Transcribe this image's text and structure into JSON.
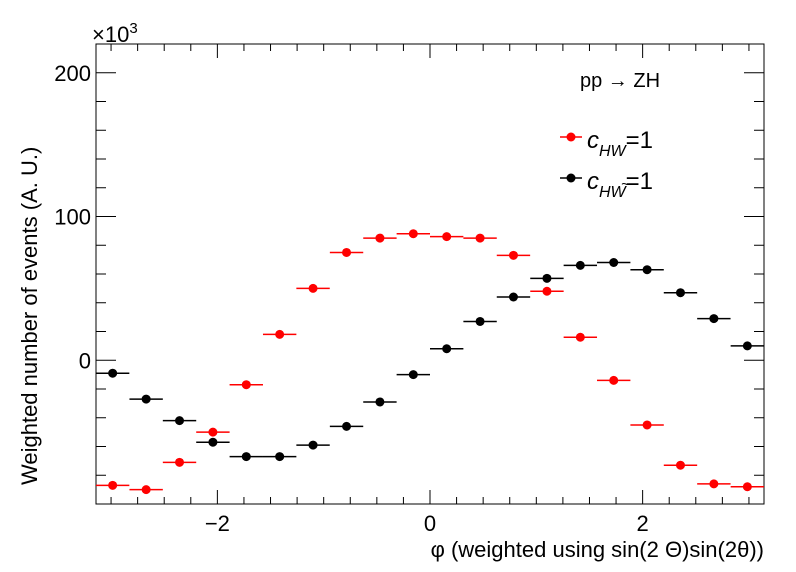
{
  "chart_data": {
    "type": "scatter",
    "xlabel": "φ (weighted using sin(2 Θ)sin(2θ))",
    "ylabel": "Weighted number of events (A. U.)",
    "multiplier": "×10",
    "multiplier_exp": "3",
    "annotation": "pp → ZH",
    "xlim": [
      -3.1416,
      3.1416
    ],
    "ylim": [
      -100,
      220
    ],
    "x_ticks": [
      -2,
      0,
      2
    ],
    "x_tick_labels": [
      "−2",
      "0",
      "2"
    ],
    "y_ticks": [
      0,
      100,
      200
    ],
    "y_tick_labels": [
      "0",
      "100",
      "200"
    ],
    "x_bin_halfwidth": 0.157,
    "x": [
      -2.985,
      -2.67,
      -2.356,
      -2.042,
      -1.728,
      -1.414,
      -1.1,
      -0.785,
      -0.471,
      -0.157,
      0.157,
      0.471,
      0.785,
      1.1,
      1.414,
      1.728,
      2.042,
      2.356,
      2.67,
      2.985
    ],
    "series": [
      {
        "legend_main": "c",
        "legend_sub": "HW",
        "legend_tilde": "",
        "legend_suffix": "=1",
        "color": "#ff0000",
        "values": [
          -87,
          -90,
          -71,
          -50,
          -17,
          18,
          50,
          75,
          85,
          88,
          86,
          85,
          73,
          48,
          16,
          -14,
          -45,
          -73,
          -86,
          -88
        ]
      },
      {
        "legend_main": "c",
        "legend_sub": "HW",
        "legend_tilde": "~",
        "legend_suffix": "=1",
        "color": "#000000",
        "values": [
          -9,
          -27,
          -42,
          -57,
          -67,
          -67,
          -59,
          -46,
          -29,
          -10,
          8,
          27,
          44,
          57,
          66,
          68,
          63,
          47,
          29,
          10
        ]
      }
    ]
  }
}
